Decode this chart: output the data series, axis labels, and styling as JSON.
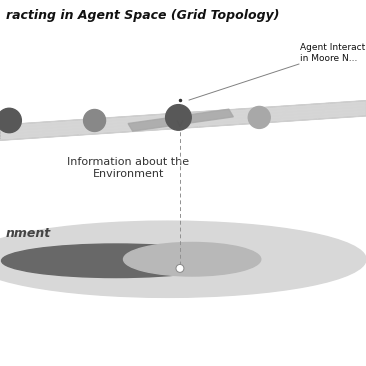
{
  "title": "racting in Agent Space (Grid Topology)",
  "title_fontsize": 9,
  "white": "#ffffff",
  "grid_color": "#d5d5d5",
  "label_moore": "Agent Interacting\nin Moore N...",
  "label_info": "Information about the\nEnvironment",
  "label_env": "nment",
  "para_main": "#d2d2d2",
  "para_dark": "#a8a8a8",
  "circle_dark": "#585858",
  "circle_med": "#888888",
  "circle_light": "#a8a8a8",
  "ellipse_outer": "#d8d8d8",
  "ellipse_dark": "#686868",
  "ellipse_mid": "#b8b8b8",
  "vline_color": "#909090",
  "annotation_line": "#808080"
}
